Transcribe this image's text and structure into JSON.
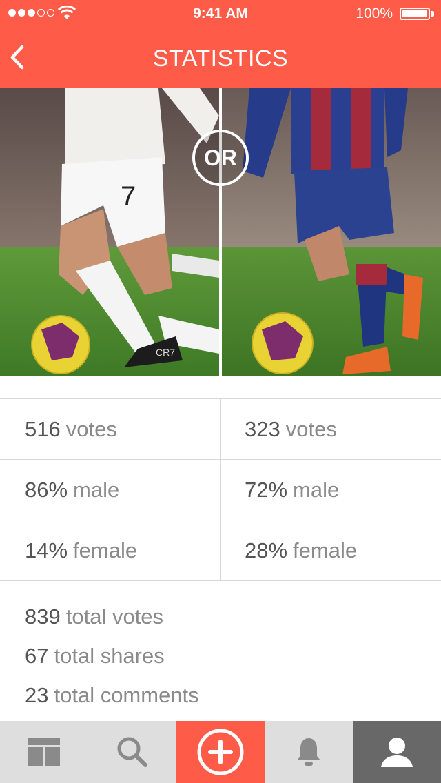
{
  "status_bar": {
    "time": "9:41 AM",
    "battery": "100%"
  },
  "header": {
    "title": "STATISTICS"
  },
  "comparison": {
    "or_label": "OR"
  },
  "stats": {
    "left": {
      "votes_value": "516",
      "votes_label": "votes",
      "male_value": "86%",
      "male_label": "male",
      "female_value": "14%",
      "female_label": "female"
    },
    "right": {
      "votes_value": "323",
      "votes_label": "votes",
      "male_value": "72%",
      "male_label": "male",
      "female_value": "28%",
      "female_label": "female"
    }
  },
  "totals": {
    "votes_value": "839",
    "votes_label": "total votes",
    "shares_value": "67",
    "shares_label": "total shares",
    "comments_value": "23",
    "comments_label": "total comments"
  },
  "tabbar": {
    "items": [
      "feed-icon",
      "search-icon",
      "add-icon",
      "bell-icon",
      "profile-icon"
    ]
  },
  "colors": {
    "accent": "#fe5c48",
    "tabbar_bg": "#dedede",
    "tab_active": "#686868",
    "text_number": "#555555",
    "text_label": "#8a8a8a"
  }
}
